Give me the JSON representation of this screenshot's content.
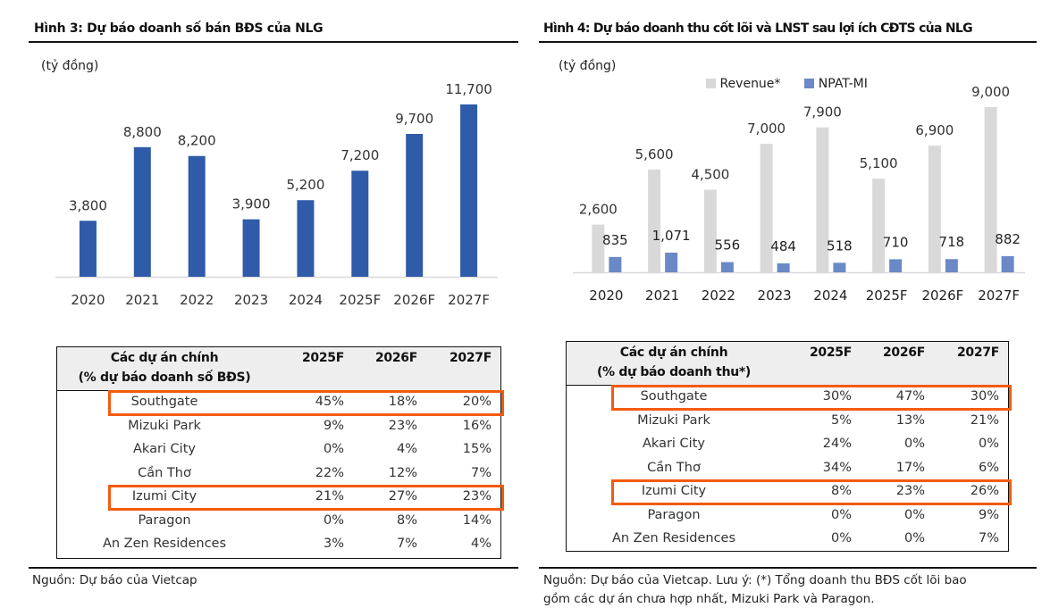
{
  "left": {
    "title": "Hình 3: Dự báo doanh số bán BĐS của NLG",
    "unit": "(tỷ đồng)",
    "table": {
      "header_line1": "Các dự án chính",
      "header_line2": "(% dự báo doanh số BĐS)",
      "columns": [
        "2025F",
        "2026F",
        "2027F"
      ],
      "rows": [
        {
          "name": "Southgate",
          "values": [
            "45%",
            "18%",
            "20%"
          ],
          "highlighted": true
        },
        {
          "name": "Mizuki Park",
          "values": [
            "9%",
            "23%",
            "16%"
          ],
          "highlighted": false
        },
        {
          "name": "Akari City",
          "values": [
            "0%",
            "4%",
            "15%"
          ],
          "highlighted": false
        },
        {
          "name": "Cần Thơ",
          "values": [
            "22%",
            "12%",
            "7%"
          ],
          "highlighted": false
        },
        {
          "name": "Izumi City",
          "values": [
            "21%",
            "27%",
            "23%"
          ],
          "highlighted": true
        },
        {
          "name": "Paragon",
          "values": [
            "0%",
            "8%",
            "14%"
          ],
          "highlighted": false
        },
        {
          "name": "An Zen Residences",
          "values": [
            "3%",
            "7%",
            "4%"
          ],
          "highlighted": false
        }
      ]
    },
    "source": "Nguồn: Dự báo của Vietcap"
  },
  "right": {
    "title": "Hình 4: Dự báo doanh thu cốt lõi và LNST sau lợi ích CĐTS của NLG",
    "unit": "(tỷ đồng)",
    "table": {
      "header_line1": "Các dự án chính",
      "header_line2": "(% dự báo doanh thu*)",
      "columns": [
        "2025F",
        "2026F",
        "2027F"
      ],
      "rows": [
        {
          "name": "Southgate",
          "values": [
            "30%",
            "47%",
            "30%"
          ],
          "highlighted": true
        },
        {
          "name": "Mizuki Park",
          "values": [
            "5%",
            "13%",
            "21%"
          ],
          "highlighted": false
        },
        {
          "name": "Akari City",
          "values": [
            "24%",
            "0%",
            "0%"
          ],
          "highlighted": false
        },
        {
          "name": "Cần Thơ",
          "values": [
            "34%",
            "17%",
            "6%"
          ],
          "highlighted": false
        },
        {
          "name": "Izumi City",
          "values": [
            "8%",
            "23%",
            "26%"
          ],
          "highlighted": true
        },
        {
          "name": "Paragon",
          "values": [
            "0%",
            "0%",
            "9%"
          ],
          "highlighted": false
        },
        {
          "name": "An Zen Residences",
          "values": [
            "0%",
            "0%",
            "7%"
          ],
          "highlighted": false
        }
      ]
    },
    "source_line1": "Nguồn: Dự báo của Vietcap. Lưu ý: (*) Tổng doanh thu BĐS cốt lõi bao",
    "source_line2": "gồm các dự án chưa hợp nhất, Mizuki Park và Paragon."
  },
  "colors": {
    "bar_blue": "#2F5BA9",
    "revenue_gray": "#D9D9D9",
    "npat_blue": "#6A89C6",
    "highlight_orange": "#F35B0E",
    "header_gray": "#EEEEEE"
  },
  "chart_data": [
    {
      "type": "bar",
      "title": "Hình 3: Dự báo doanh số bán BĐS của NLG",
      "ylabel": "(tỷ đồng)",
      "xlabel": "",
      "categories": [
        "2020",
        "2021",
        "2022",
        "2023",
        "2024",
        "2025F",
        "2026F",
        "2027F"
      ],
      "values": [
        3800,
        8800,
        8200,
        3900,
        5200,
        7200,
        9700,
        11700
      ],
      "value_labels": [
        "3,800",
        "8,800",
        "8,200",
        "3,900",
        "5,200",
        "7,200",
        "9,700",
        "11,700"
      ],
      "ylim": [
        0,
        11700
      ],
      "grid": false,
      "legend": "none"
    },
    {
      "type": "bar",
      "title": "Hình 4: Dự báo doanh thu cốt lõi và LNST sau lợi ích CĐTS của NLG",
      "ylabel": "(tỷ đồng)",
      "xlabel": "",
      "categories": [
        "2020",
        "2021",
        "2022",
        "2023",
        "2024",
        "2025F",
        "2026F",
        "2027F"
      ],
      "series": [
        {
          "name": "Revenue*",
          "values": [
            2600,
            5600,
            4500,
            7000,
            7900,
            5100,
            6900,
            9000
          ],
          "value_labels": [
            "2,600",
            "5,600",
            "4,500",
            "7,000",
            "7,900",
            "5,100",
            "6,900",
            "9,000"
          ]
        },
        {
          "name": "NPAT-MI",
          "values": [
            835,
            1071,
            556,
            484,
            518,
            710,
            718,
            882
          ],
          "value_labels": [
            "835",
            "1,071",
            "556",
            "484",
            "518",
            "710",
            "718",
            "882"
          ]
        }
      ],
      "ylim": [
        0,
        9000
      ],
      "grid": false,
      "legend": "top-center"
    }
  ]
}
